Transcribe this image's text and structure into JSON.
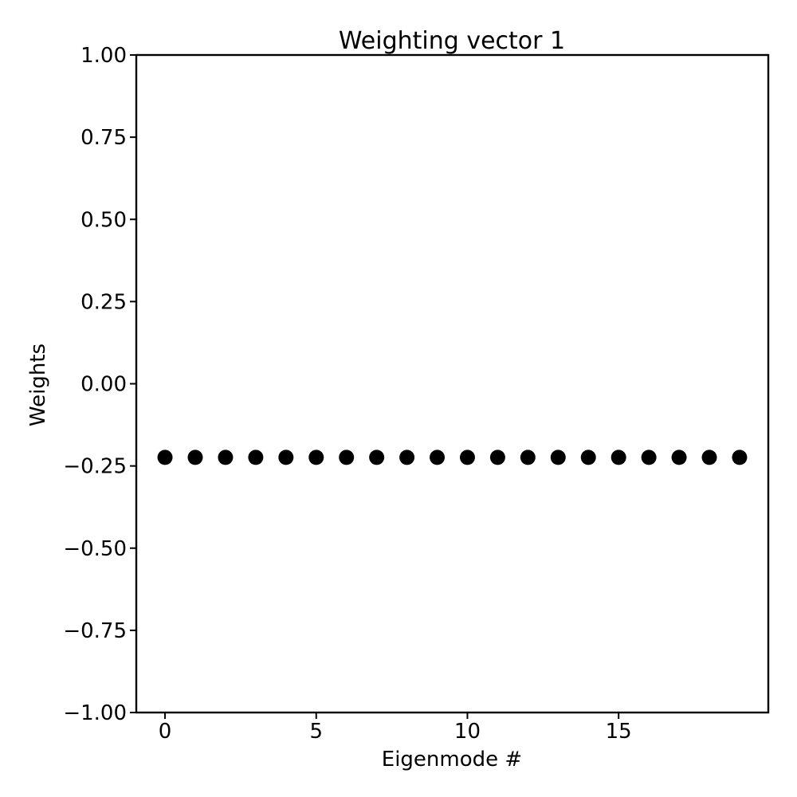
{
  "chart_data": {
    "type": "scatter",
    "title": "Weighting vector 1",
    "xlabel": "Eigenmode #",
    "ylabel": "Weights",
    "xlim": [
      -0.95,
      19.95
    ],
    "ylim": [
      -1.0,
      1.0
    ],
    "xticks": [
      0,
      5,
      10,
      15
    ],
    "xtick_labels": [
      "0",
      "5",
      "10",
      "15"
    ],
    "yticks": [
      1.0,
      0.75,
      0.5,
      0.25,
      0.0,
      -0.25,
      -0.5,
      -0.75,
      -1.0
    ],
    "ytick_labels": [
      "1.00",
      "0.75",
      "0.50",
      "0.25",
      "0.00",
      "−0.25",
      "−0.50",
      "−0.75",
      "−1.00"
    ],
    "grid": false,
    "legend": "none",
    "marker_color": "#000000",
    "series": [
      {
        "x": [
          0,
          1,
          2,
          3,
          4,
          5,
          6,
          7,
          8,
          9,
          10,
          11,
          12,
          13,
          14,
          15,
          16,
          17,
          18,
          19
        ],
        "y": [
          -0.224,
          -0.224,
          -0.224,
          -0.224,
          -0.224,
          -0.224,
          -0.224,
          -0.224,
          -0.224,
          -0.224,
          -0.224,
          -0.224,
          -0.224,
          -0.224,
          -0.224,
          -0.224,
          -0.224,
          -0.224,
          -0.224,
          -0.224
        ]
      }
    ]
  }
}
